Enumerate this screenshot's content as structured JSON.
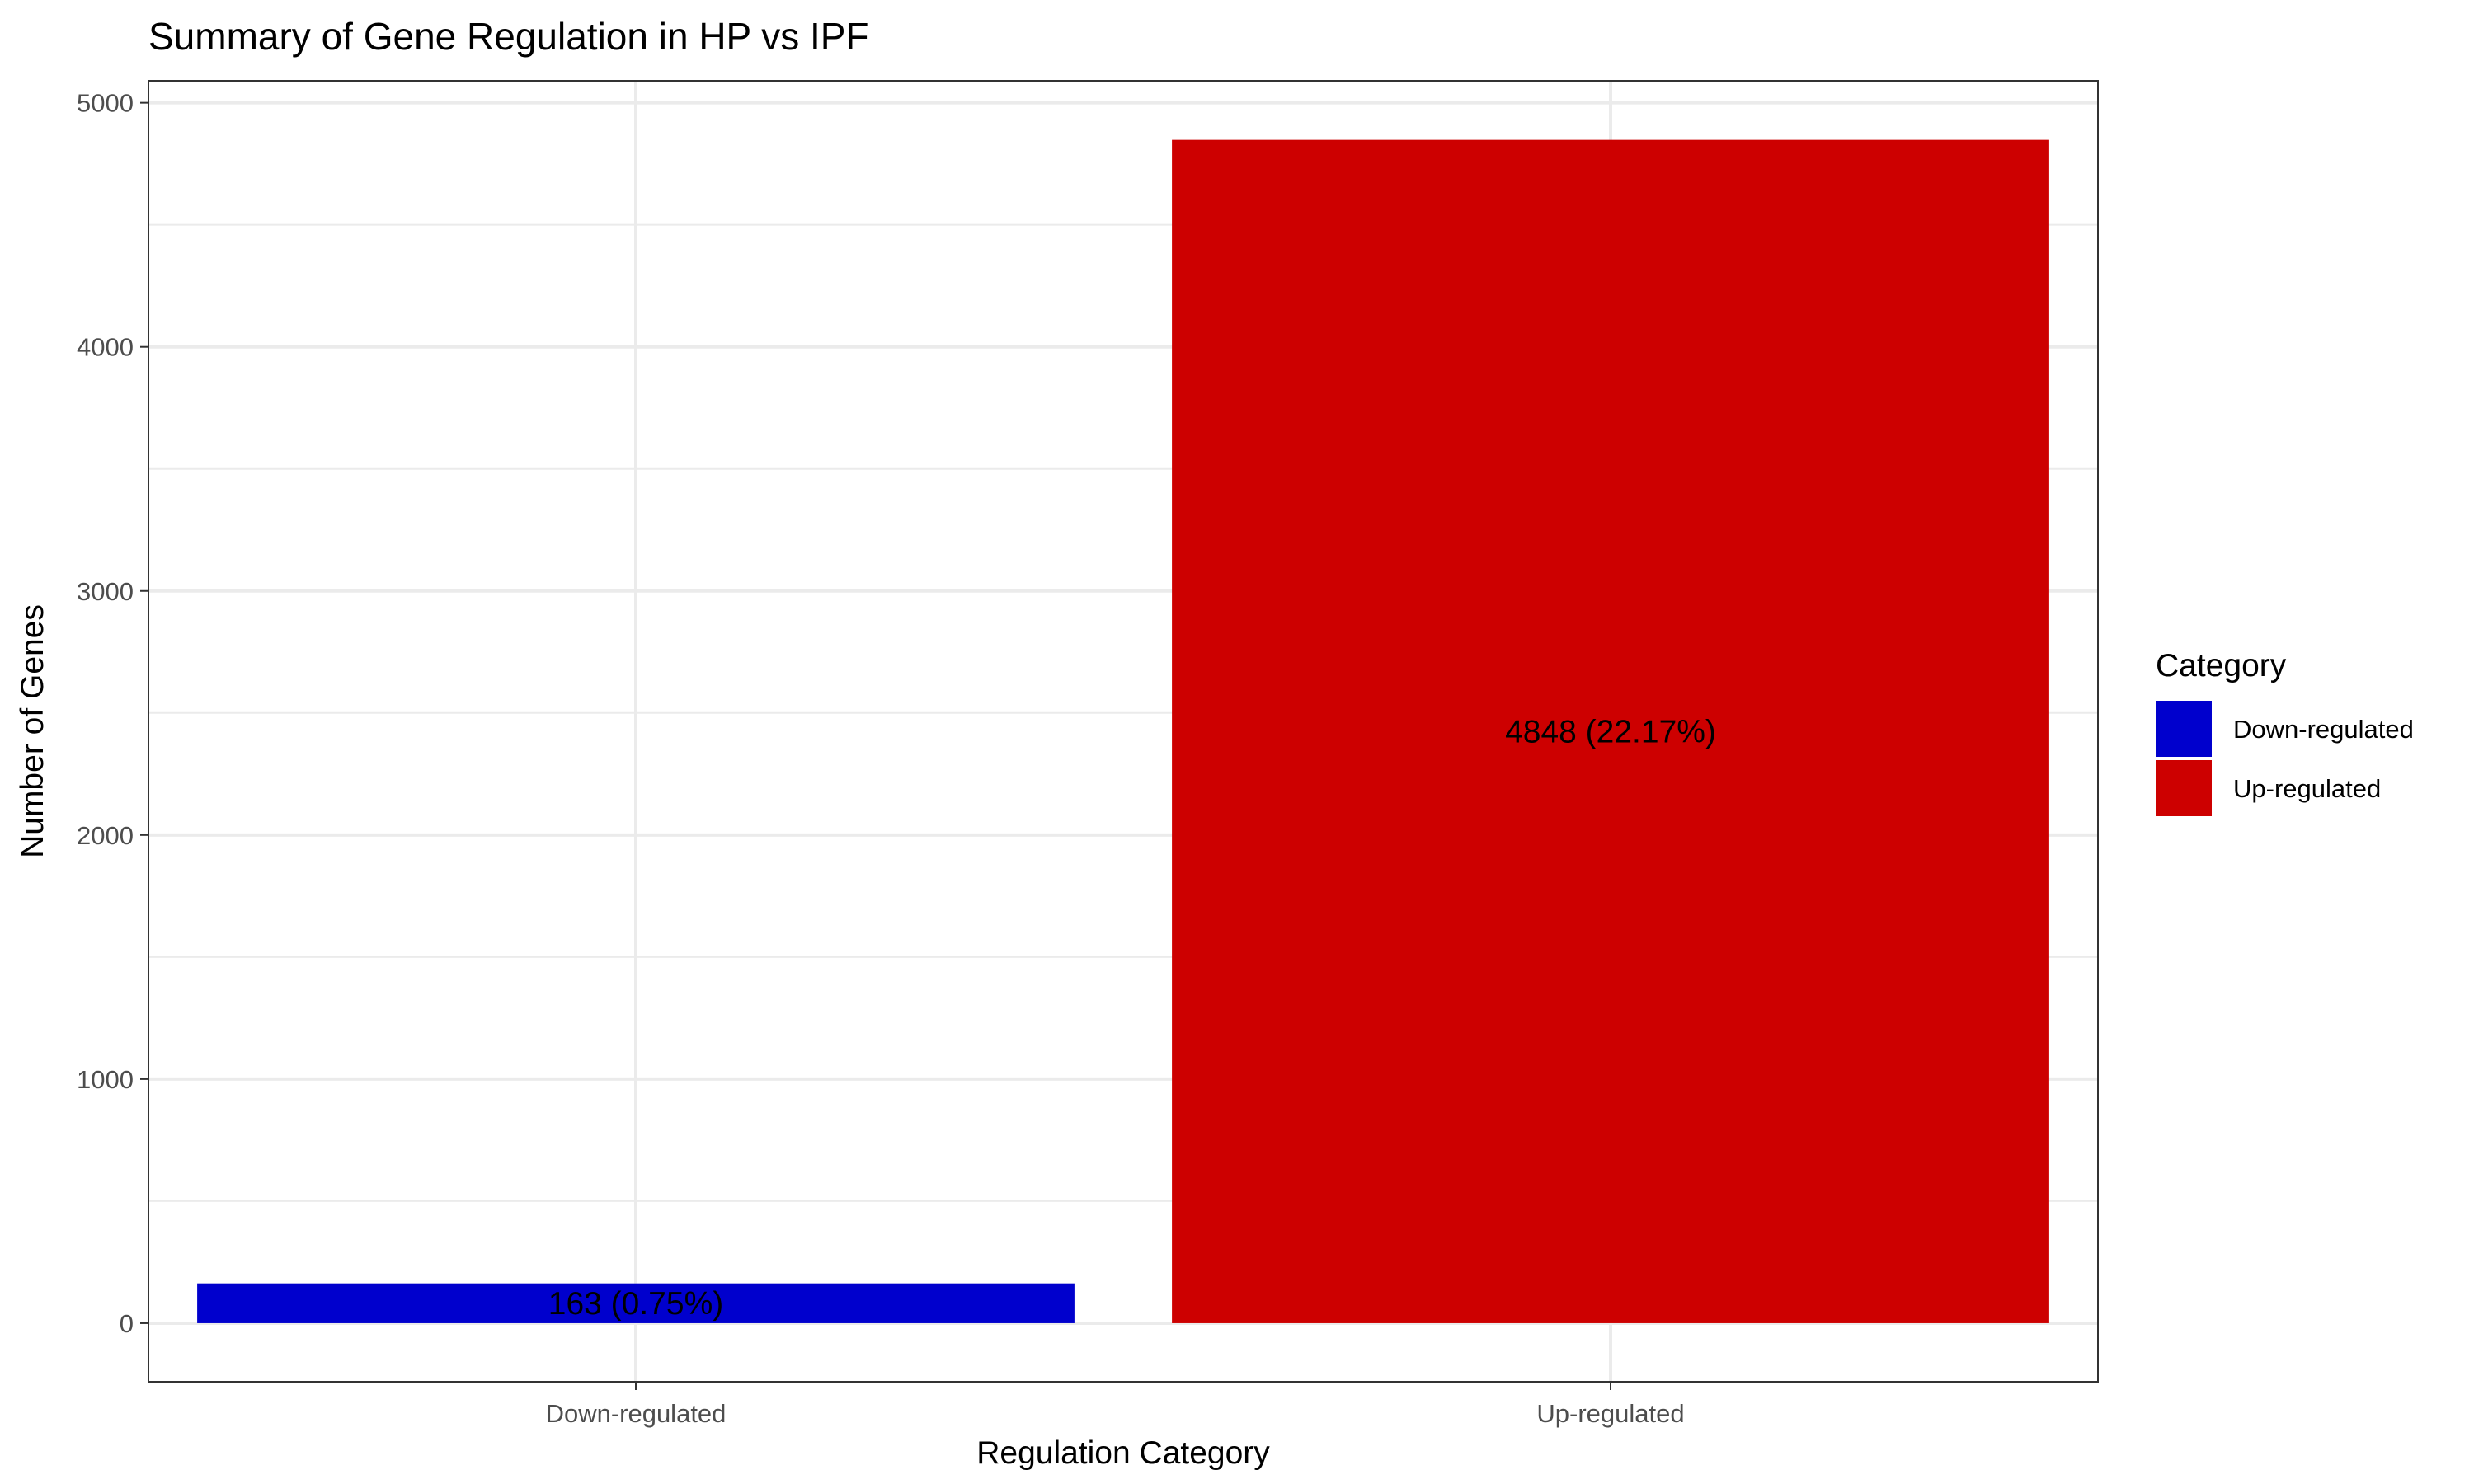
{
  "chart_data": {
    "type": "bar",
    "title": "Summary of Gene Regulation in HP vs IPF",
    "xlabel": "Regulation Category",
    "ylabel": "Number of Genes",
    "categories": [
      "Down-regulated",
      "Up-regulated"
    ],
    "values": [
      163,
      4848
    ],
    "data_labels": [
      "163 (0.75%)",
      "4848 (22.17%)"
    ],
    "colors": [
      "#0000CD",
      "#CD0000"
    ],
    "ylim": [
      -240,
      5090
    ],
    "yticks": [
      0,
      1000,
      2000,
      3000,
      4000,
      5000
    ],
    "grid": true,
    "legend": {
      "title": "Category",
      "position": "right",
      "entries": [
        "Down-regulated",
        "Up-regulated"
      ]
    }
  }
}
